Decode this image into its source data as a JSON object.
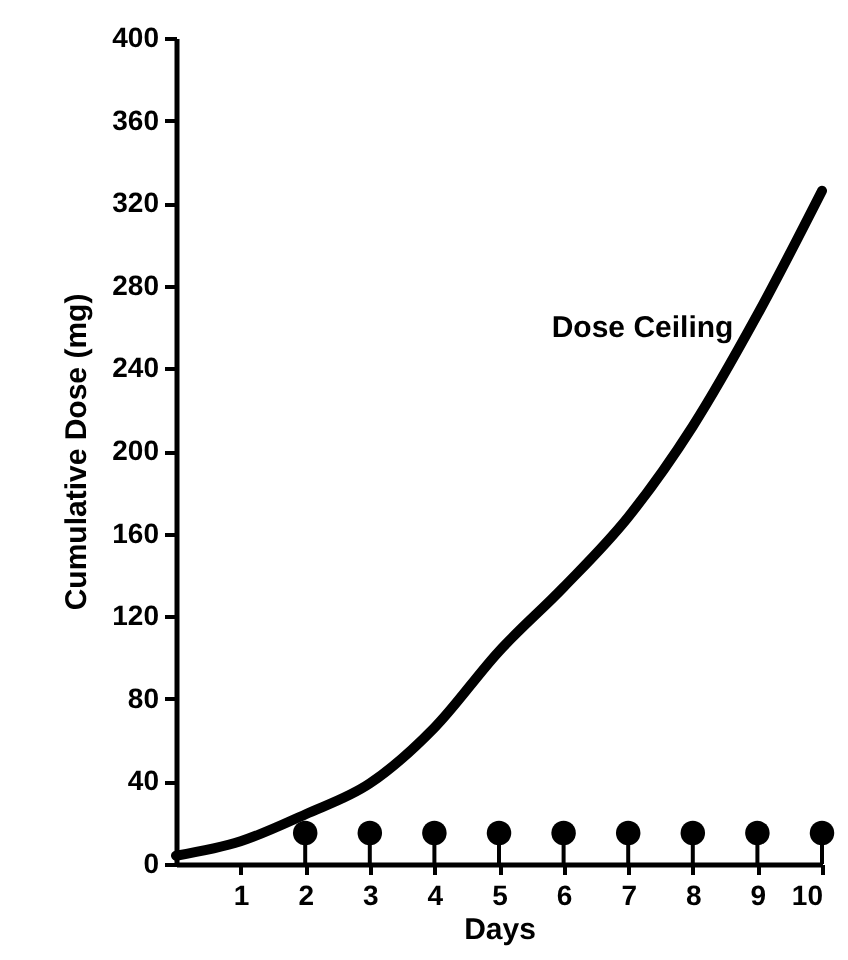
{
  "chart_data": {
    "type": "line",
    "xlabel": "Days",
    "ylabel": "Cumulative Dose (mg)",
    "xlim": [
      0,
      10
    ],
    "ylim": [
      0,
      400
    ],
    "xticks": [
      1,
      2,
      3,
      4,
      5,
      6,
      7,
      8,
      9,
      10
    ],
    "yticks": [
      0,
      40,
      80,
      120,
      160,
      200,
      240,
      280,
      320,
      360,
      400
    ],
    "grid": false,
    "legend": false,
    "series": [
      {
        "name": "Dose Ceiling",
        "type": "line",
        "color": "#000000",
        "marker": "none",
        "x": [
          0,
          1,
          2,
          3,
          4,
          5,
          6,
          7,
          8,
          9,
          10
        ],
        "values": [
          4,
          11,
          24,
          39,
          66,
          103,
          134,
          168,
          212,
          266,
          326
        ]
      },
      {
        "type": "lollipop",
        "color": "#000000",
        "marker": "circle",
        "x": [
          2,
          3,
          4,
          5,
          6,
          7,
          8,
          9,
          10
        ],
        "values": [
          15,
          15,
          15,
          15,
          15,
          15,
          15,
          15,
          15
        ]
      }
    ]
  }
}
